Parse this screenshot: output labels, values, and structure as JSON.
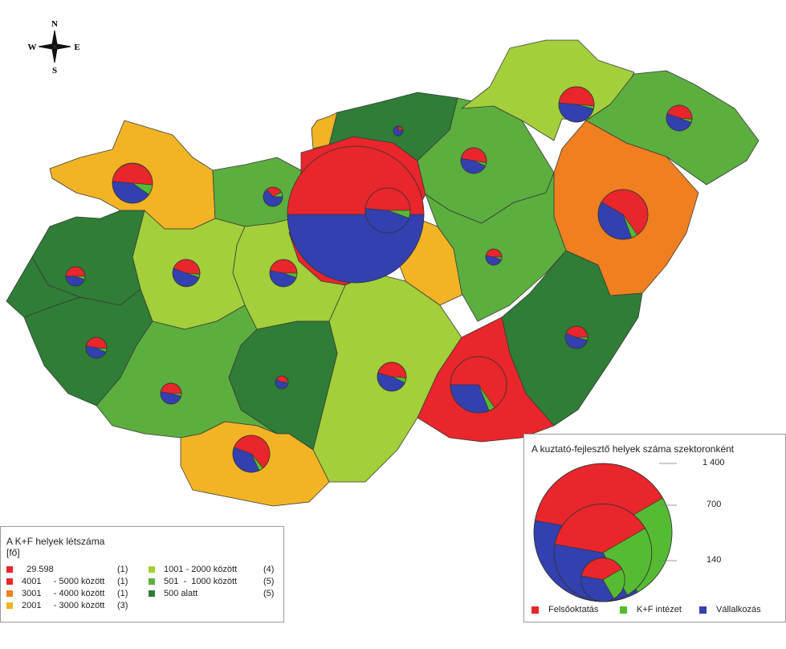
{
  "compass": {
    "n": "N",
    "s": "S",
    "w": "W",
    "e": "E"
  },
  "colors": {
    "class1": "#e8262b",
    "class2": "#e8262b",
    "class3": "#f07f1f",
    "class4": "#f2b424",
    "class5": "#a3cf3a",
    "class6": "#5cae3f",
    "class7": "#2f7d37",
    "felsooktatas": "#e8262b",
    "kf_intezet": "#55bb33",
    "vallalkozas": "#3340b0"
  },
  "legend": {
    "title": "A K+F helyek létszáma",
    "unit": "[fő]",
    "left_items": [
      {
        "label": "  29.598",
        "count": "(1)"
      },
      {
        "label": "4001     - 5000 között",
        "count": "(1)"
      },
      {
        "label": "3001     - 4000 között",
        "count": "(1)"
      },
      {
        "label": "2001     - 3000 között",
        "count": "(3)"
      }
    ],
    "right_items": [
      {
        "label": "1001 - 2000 között",
        "count": "(4)"
      },
      {
        "label": "501  -  1000 között",
        "count": "(5)"
      },
      {
        "label": "500 alatt",
        "count": "(5)"
      }
    ]
  },
  "sector_panel": {
    "title": "A kuztató-fejlesztő helyek száma szektoronként",
    "scale_labels": [
      "1 400",
      "700",
      "140"
    ],
    "scale_values": [
      1400,
      700,
      140
    ],
    "legend": [
      "Felsőoktatás",
      "K+F intézet",
      "Vállalkozás"
    ]
  },
  "chart_data": {
    "type": "map",
    "title": "A K+F helyek létszáma",
    "unit": "fő",
    "classes": [
      {
        "label": "29.598",
        "count": 1
      },
      {
        "label": "4001 - 5000 között",
        "count": 1
      },
      {
        "label": "3001 - 4000 között",
        "count": 1
      },
      {
        "label": "2001 - 3000 között",
        "count": 3
      },
      {
        "label": "1001 - 2000 között",
        "count": 4
      },
      {
        "label": "501 - 1000 között",
        "count": 5
      },
      {
        "label": "500 alatt",
        "count": 5
      }
    ],
    "sectors": [
      "Felsőoktatás",
      "K+F intézet",
      "Vállalkozás"
    ],
    "size_scale": [
      1400,
      700,
      140
    ]
  }
}
